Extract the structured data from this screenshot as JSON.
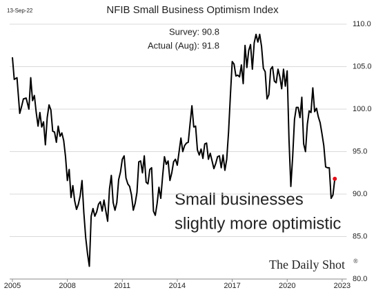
{
  "chart_data": {
    "type": "line",
    "title": "NFIB Small Business Optimism Index",
    "date_label": "13-Sep-22",
    "annotations": [
      "Survey:  90.8",
      "Actual (Aug):  91.8"
    ],
    "callout": [
      "Small businesses",
      "slightly more optimistic"
    ],
    "watermark": "The Daily Shot",
    "watermark_mark": "®",
    "xlim": [
      2004.85,
      2023.25
    ],
    "xticks": [
      2005,
      2008,
      2011,
      2014,
      2017,
      2020,
      2023
    ],
    "ylim": [
      80,
      111
    ],
    "yticks": [
      80.0,
      85.0,
      90.0,
      95.0,
      100.0,
      105.0,
      110.0
    ],
    "ytick_labels": [
      "80.0",
      "85.0",
      "90.0",
      "95.0",
      "100.0",
      "105.0",
      "110.0"
    ],
    "grid": true,
    "highlight_color": "#e0101a",
    "callout_color": "#e0101a",
    "x": [
      2005.0,
      2005.1,
      2005.25,
      2005.4,
      2005.5,
      2005.6,
      2005.75,
      2005.9,
      2006.0,
      2006.1,
      2006.2,
      2006.3,
      2006.4,
      2006.5,
      2006.6,
      2006.7,
      2006.8,
      2006.9,
      2007.0,
      2007.1,
      2007.2,
      2007.3,
      2007.4,
      2007.5,
      2007.6,
      2007.7,
      2007.8,
      2007.9,
      2008.0,
      2008.1,
      2008.2,
      2008.3,
      2008.4,
      2008.5,
      2008.6,
      2008.7,
      2008.8,
      2008.9,
      2009.0,
      2009.1,
      2009.2,
      2009.3,
      2009.4,
      2009.5,
      2009.6,
      2009.7,
      2009.8,
      2009.9,
      2010.0,
      2010.1,
      2010.2,
      2010.3,
      2010.4,
      2010.5,
      2010.6,
      2010.7,
      2010.8,
      2010.9,
      2011.0,
      2011.1,
      2011.2,
      2011.3,
      2011.4,
      2011.5,
      2011.6,
      2011.7,
      2011.8,
      2011.9,
      2012.0,
      2012.1,
      2012.2,
      2012.3,
      2012.4,
      2012.5,
      2012.6,
      2012.7,
      2012.8,
      2012.9,
      2013.0,
      2013.1,
      2013.2,
      2013.3,
      2013.4,
      2013.5,
      2013.6,
      2013.7,
      2013.8,
      2013.9,
      2014.0,
      2014.1,
      2014.2,
      2014.3,
      2014.4,
      2014.5,
      2014.6,
      2014.7,
      2014.8,
      2014.9,
      2015.0,
      2015.1,
      2015.2,
      2015.3,
      2015.4,
      2015.5,
      2015.6,
      2015.7,
      2015.8,
      2015.9,
      2016.0,
      2016.1,
      2016.2,
      2016.3,
      2016.4,
      2016.5,
      2016.6,
      2016.7,
      2016.8,
      2016.9,
      2017.0,
      2017.1,
      2017.2,
      2017.3,
      2017.4,
      2017.5,
      2017.6,
      2017.7,
      2017.8,
      2017.9,
      2018.0,
      2018.1,
      2018.2,
      2018.3,
      2018.4,
      2018.5,
      2018.6,
      2018.7,
      2018.8,
      2018.9,
      2019.0,
      2019.1,
      2019.2,
      2019.3,
      2019.4,
      2019.5,
      2019.6,
      2019.7,
      2019.8,
      2019.9,
      2020.0,
      2020.1,
      2020.2,
      2020.3,
      2020.4,
      2020.5,
      2020.6,
      2020.7,
      2020.8,
      2020.9,
      2021.0,
      2021.1,
      2021.2,
      2021.3,
      2021.4,
      2021.5,
      2021.6,
      2021.7,
      2021.8,
      2021.9,
      2022.0,
      2022.1,
      2022.2,
      2022.3,
      2022.4,
      2022.5,
      2022.6
    ],
    "series": [
      {
        "name": "NFIB Small Business Optimism Index",
        "color": "#000000",
        "values": [
          106.1,
          103.5,
          103.7,
          99.5,
          100.3,
          101.2,
          101.3,
          100.0,
          103.7,
          101.0,
          101.6,
          99.6,
          98.0,
          99.6,
          97.9,
          98.5,
          95.8,
          99.0,
          100.5,
          99.9,
          97.4,
          97.3,
          96.1,
          98.0,
          96.8,
          97.2,
          96.3,
          94.4,
          91.6,
          92.9,
          89.6,
          91.0,
          89.2,
          88.2,
          88.8,
          89.8,
          91.6,
          87.8,
          84.9,
          83.0,
          81.5,
          87.4,
          88.3,
          87.4,
          87.9,
          88.8,
          89.1,
          88.0,
          89.3,
          88.0,
          86.8,
          90.6,
          92.2,
          89.0,
          88.1,
          89.0,
          91.7,
          92.6,
          94.1,
          94.5,
          91.9,
          91.2,
          90.9,
          89.9,
          88.1,
          88.9,
          90.2,
          93.8,
          93.9,
          92.5,
          94.5,
          91.4,
          91.2,
          92.9,
          93.1,
          88.0,
          87.5,
          88.9,
          90.8,
          89.5,
          92.1,
          94.4,
          93.5,
          93.9,
          91.6,
          92.5,
          93.8,
          94.1,
          93.4,
          95.0,
          96.6,
          95.0,
          95.7,
          96.0,
          96.1,
          98.3,
          100.4,
          97.9,
          98.0,
          95.2,
          94.6,
          95.3,
          94.2,
          95.9,
          96.0,
          94.1,
          94.8,
          93.9,
          93.0,
          93.6,
          94.4,
          94.5,
          93.1,
          94.6,
          92.8,
          94.1,
          97.3,
          101.6,
          105.6,
          105.3,
          103.9,
          104.0,
          103.8,
          105.2,
          103.0,
          107.5,
          104.9,
          106.9,
          107.6,
          104.7,
          107.8,
          108.8,
          107.9,
          108.8,
          107.4,
          104.8,
          104.4,
          101.2,
          101.7,
          104.7,
          105.0,
          103.3,
          103.1,
          104.7,
          103.8,
          102.4,
          104.7,
          102.7,
          104.5,
          96.4,
          90.9,
          94.4,
          98.8,
          100.2,
          100.2,
          99.0,
          101.4,
          95.9,
          95.0,
          98.2,
          99.8,
          99.6,
          102.5,
          99.7,
          100.1,
          99.1,
          98.4,
          97.1,
          95.7,
          93.2,
          93.1,
          93.1,
          89.5,
          89.9,
          91.8
        ]
      }
    ]
  }
}
